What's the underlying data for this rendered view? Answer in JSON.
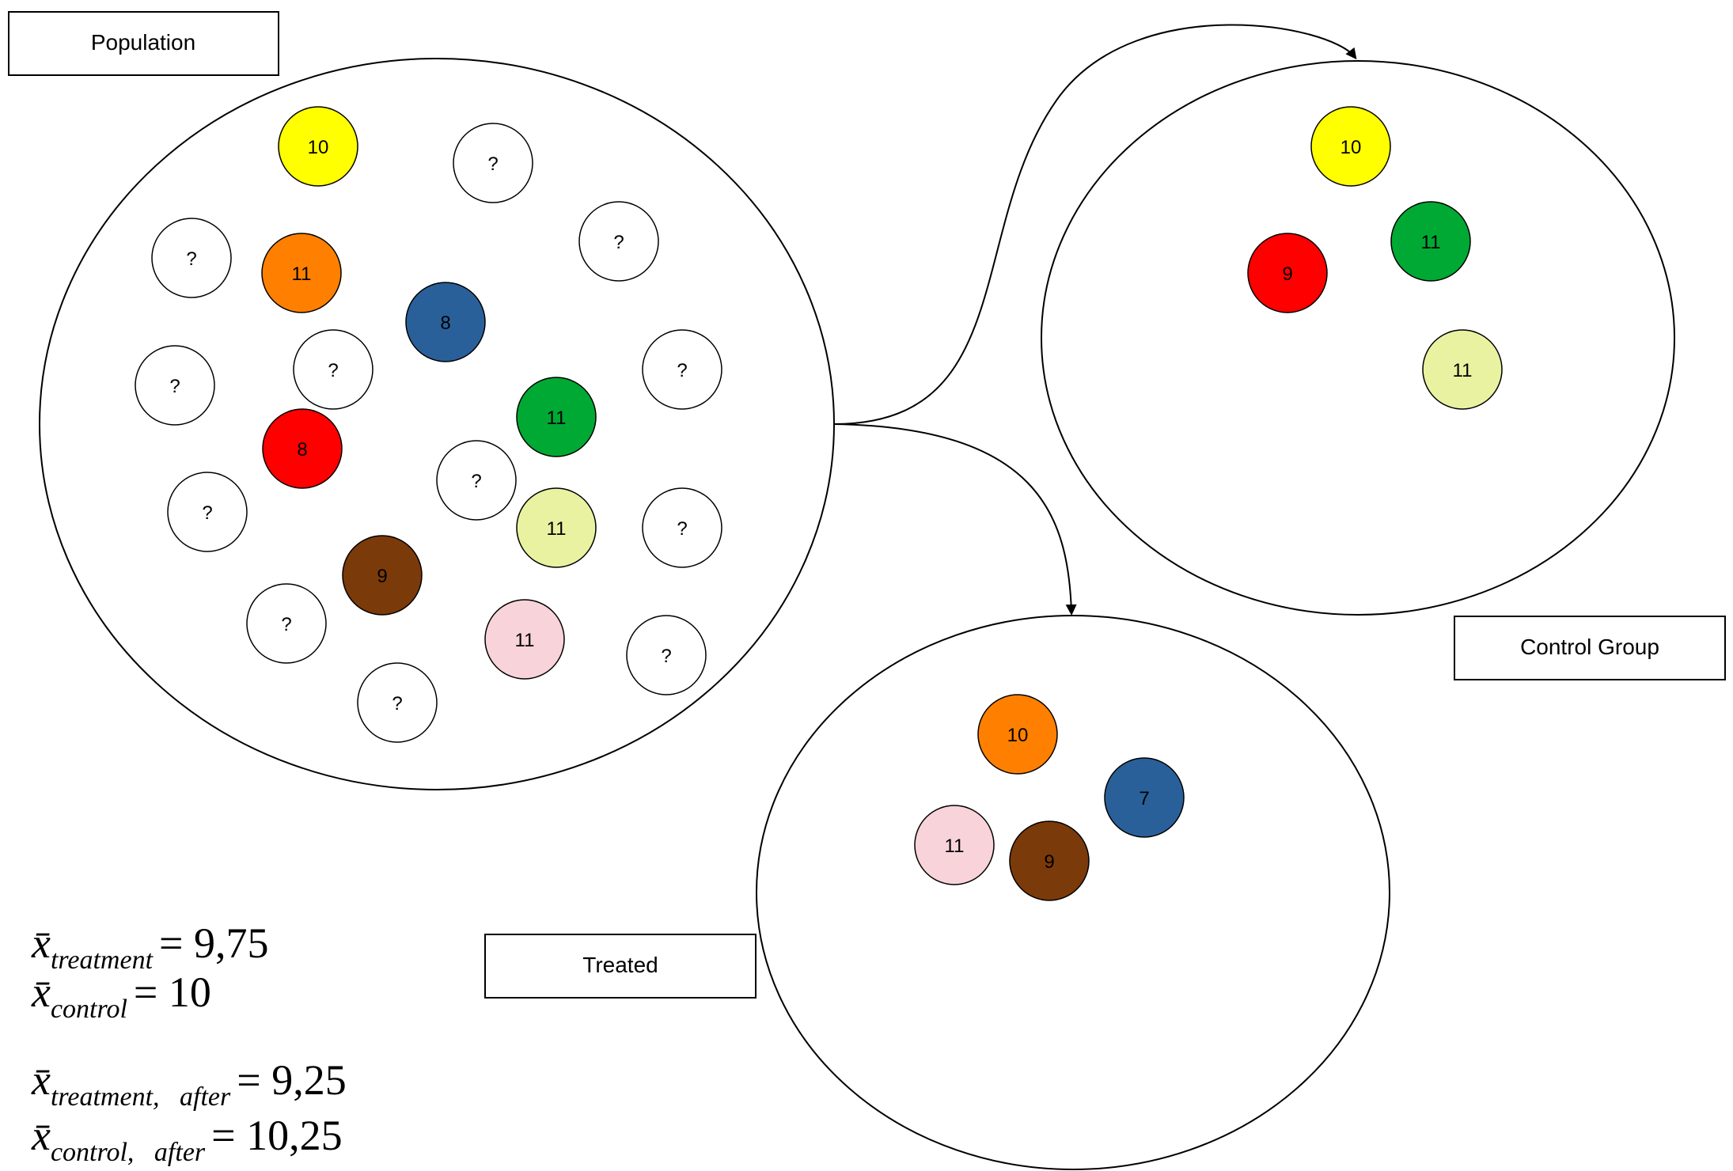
{
  "labels": {
    "population": "Population",
    "control": "Control Group",
    "treated": "Treated"
  },
  "colors": {
    "yellow": "#ffff00",
    "orange": "#ff8000",
    "blue": "#2a6099",
    "green": "#00a933",
    "red": "#ff0000",
    "light_green": "#e8f2a1",
    "brown": "#7b3a09",
    "pink": "#f8d3d9",
    "white": "#ffffff"
  },
  "population_balls": [
    {
      "label": "10",
      "color": "yellow"
    },
    {
      "label": "?",
      "color": "white"
    },
    {
      "label": "?",
      "color": "white"
    },
    {
      "label": "11",
      "color": "orange"
    },
    {
      "label": "?",
      "color": "white"
    },
    {
      "label": "8",
      "color": "blue"
    },
    {
      "label": "?",
      "color": "white"
    },
    {
      "label": "?",
      "color": "white"
    },
    {
      "label": "?",
      "color": "white"
    },
    {
      "label": "8",
      "color": "red"
    },
    {
      "label": "11",
      "color": "green"
    },
    {
      "label": "?",
      "color": "white"
    },
    {
      "label": "?",
      "color": "white"
    },
    {
      "label": "11",
      "color": "light_green"
    },
    {
      "label": "?",
      "color": "white"
    },
    {
      "label": "9",
      "color": "brown"
    },
    {
      "label": "?",
      "color": "white"
    },
    {
      "label": "11",
      "color": "pink"
    },
    {
      "label": "?",
      "color": "white"
    },
    {
      "label": "?",
      "color": "white"
    }
  ],
  "control_balls": [
    {
      "label": "10",
      "color": "yellow"
    },
    {
      "label": "11",
      "color": "green"
    },
    {
      "label": "9",
      "color": "red"
    },
    {
      "label": "11",
      "color": "light_green"
    }
  ],
  "treated_balls": [
    {
      "label": "10",
      "color": "orange"
    },
    {
      "label": "7",
      "color": "blue"
    },
    {
      "label": "11",
      "color": "pink"
    },
    {
      "label": "9",
      "color": "brown"
    }
  ],
  "formulas": [
    {
      "var": "x̄",
      "sub": "treatment",
      "eq": "= 9,75"
    },
    {
      "var": "x̄",
      "sub": "control",
      "eq": "= 10"
    },
    {
      "var": "x̄",
      "sub": "treatment,   after",
      "eq": "= 9,25"
    },
    {
      "var": "x̄",
      "sub": "control,   after",
      "eq": "= 10,25"
    }
  ]
}
